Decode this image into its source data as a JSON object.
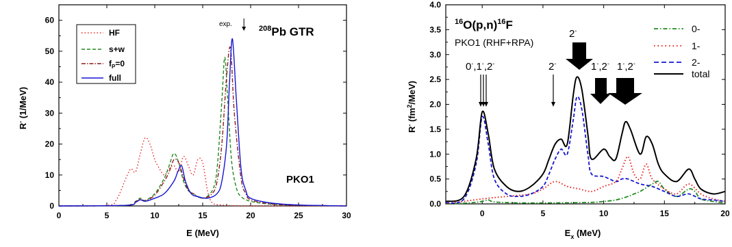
{
  "chart_data": [
    {
      "type": "line",
      "title": "208Pb GTR",
      "title_prefix": "208",
      "title_main": "Pb GTR",
      "xlabel": "E (MeV)",
      "ylabel": "R- (1/MeV)",
      "ylabel_main": "R",
      "ylabel_sup": "-",
      "ylabel_unit": " (1/MeV)",
      "xlim": [
        0,
        30
      ],
      "ylim": [
        0,
        65
      ],
      "xticks": [
        "0",
        "5",
        "10",
        "15",
        "20",
        "25",
        "30"
      ],
      "yticks": [
        "0",
        "10",
        "20",
        "30",
        "40",
        "50",
        "60"
      ],
      "annotations": [
        "PKO1",
        "exp."
      ],
      "exp_arrow_x": 19.3,
      "legend_position": "top-left",
      "series": [
        {
          "name": "HF",
          "color": "#e8201e",
          "dash": "dotted",
          "x": [
            0,
            5,
            6,
            7,
            7.5,
            8,
            8.5,
            9,
            9.5,
            10,
            10.5,
            11,
            11.5,
            12,
            12.5,
            13,
            13.5,
            14,
            14.5,
            15,
            15.5,
            16,
            17,
            18,
            20,
            30
          ],
          "y": [
            0,
            0.2,
            2,
            9,
            12,
            11,
            17,
            22,
            20,
            15,
            12,
            10,
            12,
            13,
            11,
            16,
            13,
            10,
            15,
            14,
            5,
            1,
            0.3,
            0.1,
            0,
            0
          ]
        },
        {
          "name": "s+w",
          "color": "#1e8a1e",
          "dash": "dashed",
          "x": [
            0,
            7,
            8,
            8.5,
            9,
            10,
            11,
            11.5,
            12,
            12.5,
            13,
            13.5,
            14,
            15,
            16,
            16.5,
            17,
            17.3,
            17.6,
            18,
            18.5,
            19,
            20,
            22,
            25,
            30
          ],
          "y": [
            0,
            0.2,
            1.5,
            2.5,
            1.8,
            4,
            9,
            13,
            17,
            14,
            8,
            5,
            4,
            2.5,
            5,
            12,
            34,
            48,
            35,
            15,
            6,
            3,
            1.5,
            0.6,
            0.2,
            0
          ]
        },
        {
          "name": "fP=0",
          "color": "#8b1a1a",
          "dash": "dashdot",
          "x": [
            0,
            7,
            8,
            8.5,
            9,
            10,
            11,
            11.5,
            12,
            12.5,
            13,
            13.5,
            14,
            15,
            16,
            16.5,
            17,
            17.5,
            17.9,
            18.3,
            19,
            19.5,
            20,
            22,
            25,
            30
          ],
          "y": [
            0,
            0.2,
            1.4,
            2.2,
            1.7,
            3.5,
            8,
            11,
            15,
            14,
            9,
            5,
            4,
            2.5,
            4,
            8,
            20,
            42,
            51,
            30,
            9,
            4,
            2,
            0.7,
            0.2,
            0
          ]
        },
        {
          "name": "full",
          "color": "#1414d2",
          "dash": "solid",
          "x": [
            0,
            7,
            8,
            8.5,
            9,
            10,
            11,
            12,
            12.4,
            12.8,
            13.2,
            13.8,
            14.5,
            15.5,
            16.5,
            17,
            17.5,
            17.8,
            18.1,
            18.5,
            19,
            19.5,
            20,
            22,
            25,
            30
          ],
          "y": [
            0,
            0.2,
            1.2,
            2,
            1.5,
            2.5,
            4,
            8,
            11,
            13,
            8,
            4,
            3,
            2.5,
            4,
            8,
            20,
            40,
            54,
            35,
            12,
            5,
            2.5,
            1,
            0.3,
            0
          ]
        }
      ]
    },
    {
      "type": "line",
      "title": "16O(p,n)16F",
      "title_parts": [
        "16",
        "O(p,n)",
        "16",
        "F"
      ],
      "subtitle": "PKO1 (RHF+RPA)",
      "xlabel": "Ex (MeV)",
      "xlabel_main": "E",
      "xlabel_sub": "x",
      "xlabel_unit": " (MeV)",
      "ylabel": "R- (fm2/MeV)",
      "ylabel_main": "R",
      "ylabel_sup": "-",
      "ylabel_unit_a": " (fm",
      "ylabel_unit_sup": "2",
      "ylabel_unit_b": "/MeV)",
      "xlim": [
        -3,
        20
      ],
      "ylim": [
        0,
        4.0
      ],
      "xticks": [
        "0",
        "5",
        "10",
        "15",
        "20"
      ],
      "yticks": [
        "0.0",
        "0.5",
        "1.0",
        "1.5",
        "2.0",
        "2.5",
        "3.0",
        "3.5",
        "4.0"
      ],
      "annotations": [
        "0-,1-,2-",
        "2-",
        "2-",
        "1-,2-",
        "1-,2-"
      ],
      "legend_position": "top-right",
      "series": [
        {
          "name": "0-",
          "color": "#1e8a1e",
          "dash": "dashdot",
          "x": [
            -3,
            -1,
            0,
            0.5,
            1,
            3,
            6,
            9,
            10,
            11,
            12,
            12.5,
            13,
            14,
            14.5,
            15,
            16,
            17,
            17.5,
            18,
            19,
            20
          ],
          "y": [
            0,
            0.02,
            0.05,
            0.08,
            0.04,
            0.02,
            0.02,
            0.03,
            0.05,
            0.08,
            0.15,
            0.2,
            0.25,
            0.4,
            0.45,
            0.3,
            0.15,
            0.3,
            0.25,
            0.1,
            0.05,
            0.02
          ]
        },
        {
          "name": "1-",
          "color": "#e8201e",
          "dash": "dotted",
          "x": [
            -3,
            0,
            2,
            4,
            5,
            6,
            7,
            8,
            9,
            10,
            11,
            11.5,
            12,
            12.5,
            13,
            13.5,
            14,
            15,
            16,
            17,
            18,
            19,
            20
          ],
          "y": [
            0,
            0.1,
            0.15,
            0.2,
            0.3,
            0.45,
            0.35,
            0.3,
            0.25,
            0.35,
            0.45,
            0.7,
            0.95,
            0.6,
            0.5,
            0.8,
            0.5,
            0.3,
            0.2,
            0.4,
            0.2,
            0.1,
            0.05
          ]
        },
        {
          "name": "2-",
          "color": "#1414d2",
          "dash": "dashed",
          "x": [
            -3,
            -1.5,
            -0.5,
            0,
            0.5,
            1,
            2,
            3,
            4,
            5,
            5.5,
            6,
            6.5,
            7,
            7.5,
            7.8,
            8.2,
            8.7,
            9,
            10,
            11,
            11.5,
            12,
            13,
            14,
            15,
            16,
            17,
            18,
            19,
            20
          ],
          "y": [
            0.02,
            0.1,
            0.8,
            1.75,
            1.2,
            0.5,
            0.2,
            0.15,
            0.2,
            0.35,
            0.6,
            0.9,
            1.1,
            1.0,
            1.7,
            2.15,
            1.9,
            1.0,
            0.6,
            0.55,
            0.45,
            0.5,
            0.5,
            0.4,
            0.35,
            0.25,
            0.15,
            0.2,
            0.1,
            0.08,
            0.05
          ]
        },
        {
          "name": "total",
          "color": "#000000",
          "dash": "solid",
          "x": [
            -3,
            -1.5,
            -0.5,
            0,
            0.5,
            1,
            2,
            3,
            4,
            5,
            5.5,
            6,
            6.5,
            7,
            7.5,
            7.8,
            8.2,
            8.7,
            9,
            10,
            10.5,
            11,
            11.5,
            11.8,
            12.2,
            13,
            13.5,
            14,
            14.5,
            15,
            16,
            17,
            17.5,
            18,
            19,
            20
          ],
          "y": [
            0.05,
            0.15,
            0.9,
            1.85,
            1.4,
            0.7,
            0.35,
            0.25,
            0.35,
            0.6,
            0.9,
            1.2,
            1.3,
            1.2,
            2.2,
            2.55,
            2.3,
            1.4,
            0.9,
            1.1,
            0.95,
            0.9,
            1.4,
            1.65,
            1.5,
            1.0,
            1.35,
            1.2,
            0.8,
            0.6,
            0.45,
            0.7,
            0.5,
            0.3,
            0.2,
            0.25
          ]
        }
      ]
    }
  ]
}
